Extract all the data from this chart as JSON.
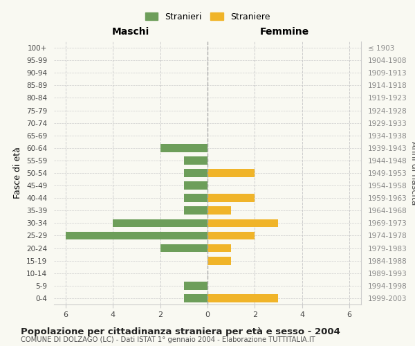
{
  "age_groups": [
    "100+",
    "95-99",
    "90-94",
    "85-89",
    "80-84",
    "75-79",
    "70-74",
    "65-69",
    "60-64",
    "55-59",
    "50-54",
    "45-49",
    "40-44",
    "35-39",
    "30-34",
    "25-29",
    "20-24",
    "15-19",
    "10-14",
    "5-9",
    "0-4"
  ],
  "anni_nascita": [
    "≤ 1903",
    "1904-1908",
    "1909-1913",
    "1914-1918",
    "1919-1923",
    "1924-1928",
    "1929-1933",
    "1934-1938",
    "1939-1943",
    "1944-1948",
    "1949-1953",
    "1954-1958",
    "1959-1963",
    "1964-1968",
    "1969-1973",
    "1974-1978",
    "1979-1983",
    "1984-1988",
    "1989-1993",
    "1994-1998",
    "1999-2003"
  ],
  "maschi": [
    0,
    0,
    0,
    0,
    0,
    0,
    0,
    0,
    2,
    1,
    1,
    1,
    1,
    1,
    4,
    6,
    2,
    0,
    0,
    1,
    1
  ],
  "femmine": [
    0,
    0,
    0,
    0,
    0,
    0,
    0,
    0,
    0,
    0,
    2,
    0,
    2,
    1,
    3,
    2,
    1,
    1,
    0,
    0,
    3
  ],
  "color_maschi": "#6d9e5a",
  "color_femmine": "#f0b429",
  "xlim": 6.5,
  "xlabel_left": "Maschi",
  "xlabel_right": "Femmine",
  "ylabel_left": "Fasce di età",
  "ylabel_right": "Anni di nascita",
  "title": "Popolazione per cittadinanza straniera per età e sesso - 2004",
  "subtitle": "COMUNE DI DOLZAGO (LC) - Dati ISTAT 1° gennaio 2004 - Elaborazione TUTTITALIA.IT",
  "legend_maschi": "Stranieri",
  "legend_femmine": "Straniere",
  "bg_color": "#f9f9f2",
  "grid_color": "#cccccc",
  "bar_height": 0.65
}
